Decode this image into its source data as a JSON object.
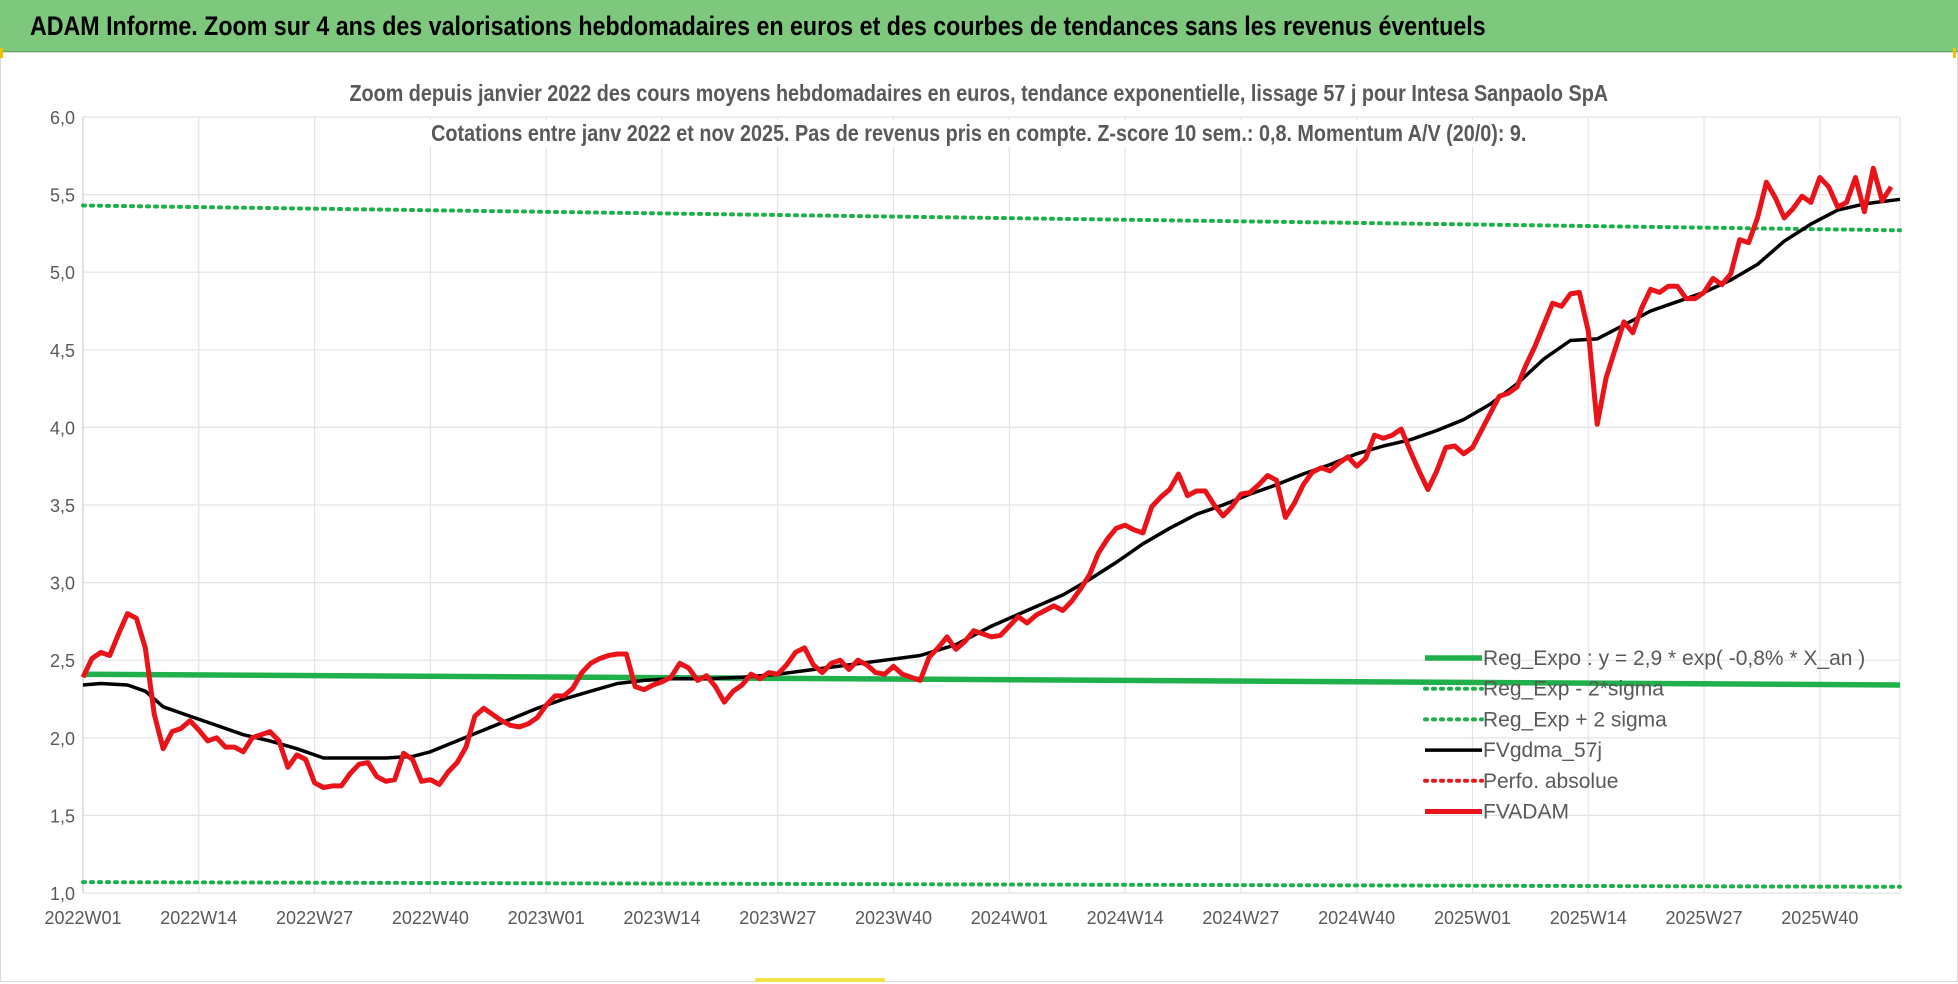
{
  "header": {
    "title": "ADAM Informe. Zoom sur 4 ans des valorisations hebdomadaires en euros et des courbes de tendances sans les revenus éventuels"
  },
  "colors": {
    "banner": "#7ec87e",
    "reg_expo": "#1fb04b",
    "sigma": "#1fb04b",
    "fvgdma": "#000000",
    "perfo": "#e41a1c",
    "fvadam": "#e8141a",
    "grid": "#e3e3e3"
  },
  "chart_data": {
    "type": "line",
    "title": "Zoom depuis janvier 2022 des cours moyens hebdomadaires en euros, tendance exponentielle, lissage 57 j pour Intesa Sanpaolo SpA",
    "subtitle": "Cotations entre janv 2022 et nov 2025. Pas de revenus pris en compte. Z-score 10 sem.: 0,8. Momentum A/V (20/0): 9.",
    "xlabel": "",
    "ylabel": "",
    "ylim": [
      1.0,
      6.0
    ],
    "y_ticks": [
      "1,0",
      "1,5",
      "2,0",
      "2,5",
      "3,0",
      "3,5",
      "4,0",
      "4,5",
      "5,0",
      "5,5",
      "6,0"
    ],
    "x_ticks": [
      {
        "week": 0,
        "label": "2022W01"
      },
      {
        "week": 13,
        "label": "2022W14"
      },
      {
        "week": 26,
        "label": "2022W27"
      },
      {
        "week": 39,
        "label": "2022W40"
      },
      {
        "week": 52,
        "label": "2023W01"
      },
      {
        "week": 65,
        "label": "2023W14"
      },
      {
        "week": 78,
        "label": "2023W27"
      },
      {
        "week": 91,
        "label": "2023W40"
      },
      {
        "week": 104,
        "label": "2024W01"
      },
      {
        "week": 117,
        "label": "2024W14"
      },
      {
        "week": 130,
        "label": "2024W27"
      },
      {
        "week": 143,
        "label": "2024W40"
      },
      {
        "week": 156,
        "label": "2025W01"
      },
      {
        "week": 169,
        "label": "2025W14"
      },
      {
        "week": 182,
        "label": "2025W27"
      },
      {
        "week": 195,
        "label": "2025W40"
      }
    ],
    "x_end_week": 204,
    "grid": true,
    "legend_position": "right-inside, lower",
    "series": [
      {
        "name": "Reg_Expo : y = 2,9 * exp( -0,8% * X_an )",
        "style": "solid-thick",
        "color": "#1fb04b",
        "points": [
          [
            0,
            2.41
          ],
          [
            204,
            2.34
          ]
        ]
      },
      {
        "name": "Reg_Exp - 2*sigma",
        "style": "dotted",
        "color": "#1fb04b",
        "points": [
          [
            0,
            1.07
          ],
          [
            204,
            1.04
          ]
        ]
      },
      {
        "name": "Reg_Exp + 2 sigma",
        "style": "dotted",
        "color": "#1fb04b",
        "points": [
          [
            0,
            5.43
          ],
          [
            204,
            5.27
          ]
        ]
      },
      {
        "name": "FVgdma_57j",
        "style": "solid",
        "color": "#000000",
        "points": [
          [
            0,
            2.34
          ],
          [
            2,
            2.35
          ],
          [
            5,
            2.34
          ],
          [
            7,
            2.3
          ],
          [
            9,
            2.2
          ],
          [
            12,
            2.14
          ],
          [
            15,
            2.08
          ],
          [
            18,
            2.02
          ],
          [
            21,
            1.98
          ],
          [
            24,
            1.93
          ],
          [
            27,
            1.87
          ],
          [
            30,
            1.87
          ],
          [
            34,
            1.87
          ],
          [
            37,
            1.88
          ],
          [
            39,
            1.91
          ],
          [
            42,
            1.98
          ],
          [
            45,
            2.05
          ],
          [
            48,
            2.12
          ],
          [
            51,
            2.19
          ],
          [
            54,
            2.25
          ],
          [
            57,
            2.3
          ],
          [
            60,
            2.35
          ],
          [
            63,
            2.37
          ],
          [
            66,
            2.38
          ],
          [
            70,
            2.38
          ],
          [
            74,
            2.39
          ],
          [
            78,
            2.41
          ],
          [
            82,
            2.44
          ],
          [
            86,
            2.47
          ],
          [
            90,
            2.5
          ],
          [
            94,
            2.53
          ],
          [
            98,
            2.6
          ],
          [
            102,
            2.72
          ],
          [
            106,
            2.82
          ],
          [
            110,
            2.92
          ],
          [
            113,
            3.02
          ],
          [
            116,
            3.13
          ],
          [
            119,
            3.25
          ],
          [
            122,
            3.35
          ],
          [
            125,
            3.44
          ],
          [
            128,
            3.5
          ],
          [
            131,
            3.57
          ],
          [
            134,
            3.63
          ],
          [
            137,
            3.7
          ],
          [
            140,
            3.76
          ],
          [
            143,
            3.83
          ],
          [
            146,
            3.88
          ],
          [
            149,
            3.92
          ],
          [
            152,
            3.98
          ],
          [
            155,
            4.05
          ],
          [
            158,
            4.15
          ],
          [
            161,
            4.28
          ],
          [
            164,
            4.44
          ],
          [
            167,
            4.56
          ],
          [
            170,
            4.57
          ],
          [
            173,
            4.66
          ],
          [
            176,
            4.75
          ],
          [
            179,
            4.81
          ],
          [
            182,
            4.87
          ],
          [
            185,
            4.95
          ],
          [
            188,
            5.05
          ],
          [
            191,
            5.2
          ],
          [
            194,
            5.31
          ],
          [
            197,
            5.4
          ],
          [
            200,
            5.44
          ],
          [
            204,
            5.47
          ]
        ]
      },
      {
        "name": "Perfo. absolue",
        "style": "dotted",
        "color": "#e41a1c",
        "points": []
      },
      {
        "name": "FVADAM",
        "style": "solid-thick",
        "color": "#e8141a",
        "points": [
          [
            0,
            2.39
          ],
          [
            1,
            2.51
          ],
          [
            2,
            2.55
          ],
          [
            3,
            2.53
          ],
          [
            4,
            2.67
          ],
          [
            5,
            2.8
          ],
          [
            6,
            2.77
          ],
          [
            7,
            2.58
          ],
          [
            8,
            2.15
          ],
          [
            9,
            1.93
          ],
          [
            10,
            2.04
          ],
          [
            11,
            2.06
          ],
          [
            12,
            2.11
          ],
          [
            13,
            2.05
          ],
          [
            14,
            1.98
          ],
          [
            15,
            2.0
          ],
          [
            16,
            1.94
          ],
          [
            17,
            1.94
          ],
          [
            18,
            1.91
          ],
          [
            19,
            2.0
          ],
          [
            20,
            2.02
          ],
          [
            21,
            2.04
          ],
          [
            22,
            1.98
          ],
          [
            23,
            1.81
          ],
          [
            24,
            1.89
          ],
          [
            25,
            1.86
          ],
          [
            26,
            1.71
          ],
          [
            27,
            1.68
          ],
          [
            28,
            1.69
          ],
          [
            29,
            1.69
          ],
          [
            30,
            1.77
          ],
          [
            31,
            1.83
          ],
          [
            32,
            1.84
          ],
          [
            33,
            1.75
          ],
          [
            34,
            1.72
          ],
          [
            35,
            1.73
          ],
          [
            36,
            1.9
          ],
          [
            37,
            1.86
          ],
          [
            38,
            1.72
          ],
          [
            39,
            1.73
          ],
          [
            40,
            1.7
          ],
          [
            41,
            1.78
          ],
          [
            42,
            1.84
          ],
          [
            43,
            1.94
          ],
          [
            44,
            2.14
          ],
          [
            45,
            2.19
          ],
          [
            46,
            2.15
          ],
          [
            47,
            2.11
          ],
          [
            48,
            2.08
          ],
          [
            49,
            2.07
          ],
          [
            50,
            2.09
          ],
          [
            51,
            2.13
          ],
          [
            52,
            2.21
          ],
          [
            53,
            2.27
          ],
          [
            54,
            2.27
          ],
          [
            55,
            2.32
          ],
          [
            56,
            2.42
          ],
          [
            57,
            2.48
          ],
          [
            58,
            2.51
          ],
          [
            59,
            2.53
          ],
          [
            60,
            2.54
          ],
          [
            61,
            2.54
          ],
          [
            62,
            2.33
          ],
          [
            63,
            2.31
          ],
          [
            64,
            2.34
          ],
          [
            65,
            2.36
          ],
          [
            66,
            2.39
          ],
          [
            67,
            2.48
          ],
          [
            68,
            2.45
          ],
          [
            69,
            2.37
          ],
          [
            70,
            2.4
          ],
          [
            71,
            2.33
          ],
          [
            72,
            2.23
          ],
          [
            73,
            2.3
          ],
          [
            74,
            2.34
          ],
          [
            75,
            2.41
          ],
          [
            76,
            2.38
          ],
          [
            77,
            2.42
          ],
          [
            78,
            2.41
          ],
          [
            79,
            2.47
          ],
          [
            80,
            2.55
          ],
          [
            81,
            2.58
          ],
          [
            82,
            2.47
          ],
          [
            83,
            2.42
          ],
          [
            84,
            2.48
          ],
          [
            85,
            2.5
          ],
          [
            86,
            2.44
          ],
          [
            87,
            2.5
          ],
          [
            88,
            2.47
          ],
          [
            89,
            2.42
          ],
          [
            90,
            2.41
          ],
          [
            91,
            2.46
          ],
          [
            92,
            2.41
          ],
          [
            93,
            2.39
          ],
          [
            94,
            2.37
          ],
          [
            95,
            2.52
          ],
          [
            96,
            2.58
          ],
          [
            97,
            2.65
          ],
          [
            98,
            2.57
          ],
          [
            99,
            2.62
          ],
          [
            100,
            2.69
          ],
          [
            101,
            2.67
          ],
          [
            102,
            2.65
          ],
          [
            103,
            2.66
          ],
          [
            104,
            2.72
          ],
          [
            105,
            2.78
          ],
          [
            106,
            2.74
          ],
          [
            107,
            2.79
          ],
          [
            108,
            2.82
          ],
          [
            109,
            2.85
          ],
          [
            110,
            2.82
          ],
          [
            111,
            2.88
          ],
          [
            112,
            2.96
          ],
          [
            113,
            3.05
          ],
          [
            114,
            3.19
          ],
          [
            115,
            3.28
          ],
          [
            116,
            3.35
          ],
          [
            117,
            3.37
          ],
          [
            118,
            3.34
          ],
          [
            119,
            3.32
          ],
          [
            120,
            3.49
          ],
          [
            121,
            3.55
          ],
          [
            122,
            3.6
          ],
          [
            123,
            3.7
          ],
          [
            124,
            3.56
          ],
          [
            125,
            3.59
          ],
          [
            126,
            3.59
          ],
          [
            127,
            3.5
          ],
          [
            128,
            3.43
          ],
          [
            129,
            3.49
          ],
          [
            130,
            3.57
          ],
          [
            131,
            3.58
          ],
          [
            132,
            3.63
          ],
          [
            133,
            3.69
          ],
          [
            134,
            3.66
          ],
          [
            135,
            3.42
          ],
          [
            136,
            3.51
          ],
          [
            137,
            3.63
          ],
          [
            138,
            3.71
          ],
          [
            139,
            3.74
          ],
          [
            140,
            3.72
          ],
          [
            141,
            3.77
          ],
          [
            142,
            3.81
          ],
          [
            143,
            3.75
          ],
          [
            144,
            3.8
          ],
          [
            145,
            3.95
          ],
          [
            146,
            3.93
          ],
          [
            147,
            3.95
          ],
          [
            148,
            3.99
          ],
          [
            149,
            3.85
          ],
          [
            150,
            3.72
          ],
          [
            151,
            3.6
          ],
          [
            152,
            3.72
          ],
          [
            153,
            3.87
          ],
          [
            154,
            3.88
          ],
          [
            155,
            3.83
          ],
          [
            156,
            3.87
          ],
          [
            157,
            3.98
          ],
          [
            158,
            4.09
          ],
          [
            159,
            4.2
          ],
          [
            160,
            4.22
          ],
          [
            161,
            4.26
          ],
          [
            162,
            4.4
          ],
          [
            163,
            4.52
          ],
          [
            164,
            4.66
          ],
          [
            165,
            4.8
          ],
          [
            166,
            4.78
          ],
          [
            167,
            4.86
          ],
          [
            168,
            4.87
          ],
          [
            169,
            4.62
          ],
          [
            170,
            4.02
          ],
          [
            171,
            4.32
          ],
          [
            172,
            4.5
          ],
          [
            173,
            4.68
          ],
          [
            174,
            4.61
          ],
          [
            175,
            4.77
          ],
          [
            176,
            4.89
          ],
          [
            177,
            4.87
          ],
          [
            178,
            4.91
          ],
          [
            179,
            4.91
          ],
          [
            180,
            4.83
          ],
          [
            181,
            4.83
          ],
          [
            182,
            4.87
          ],
          [
            183,
            4.96
          ],
          [
            184,
            4.92
          ],
          [
            185,
            4.99
          ],
          [
            186,
            5.21
          ],
          [
            187,
            5.19
          ],
          [
            188,
            5.35
          ],
          [
            189,
            5.58
          ],
          [
            190,
            5.48
          ],
          [
            191,
            5.35
          ],
          [
            192,
            5.41
          ],
          [
            193,
            5.49
          ],
          [
            194,
            5.45
          ],
          [
            195,
            5.61
          ],
          [
            196,
            5.55
          ],
          [
            197,
            5.42
          ],
          [
            198,
            5.45
          ],
          [
            199,
            5.61
          ],
          [
            200,
            5.39
          ],
          [
            201,
            5.67
          ],
          [
            202,
            5.46
          ],
          [
            203,
            5.55
          ]
        ]
      }
    ]
  }
}
